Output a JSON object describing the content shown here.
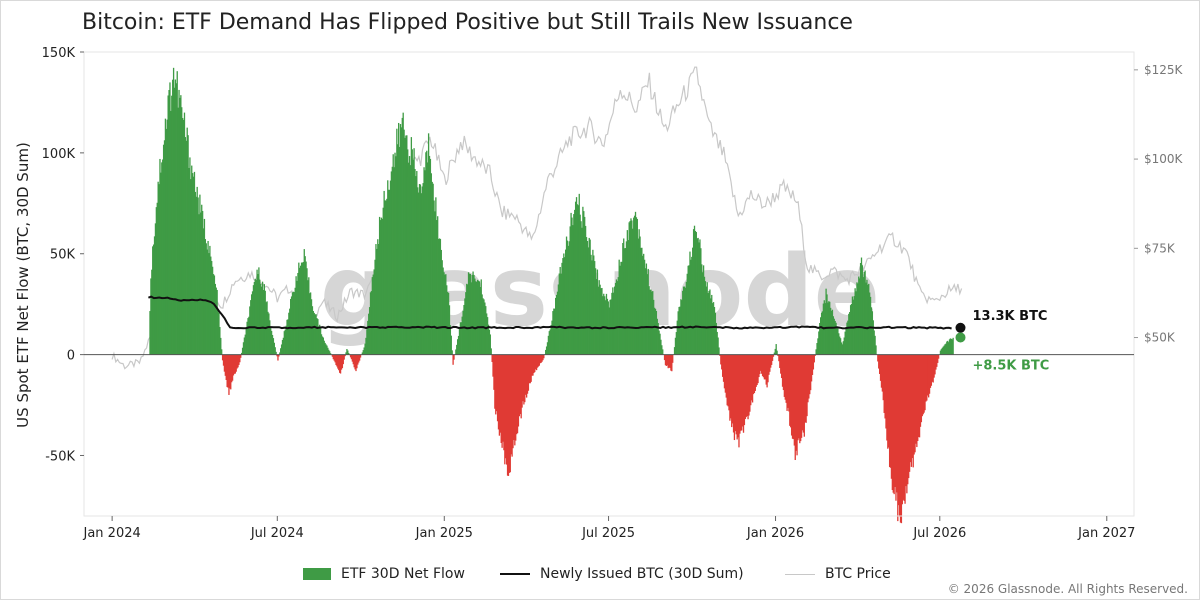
{
  "title": "Bitcoin: ETF Demand Has Flipped Positive but Still Trails New Issuance",
  "watermark": "glassnode",
  "copyright": "© 2026 Glassnode. All Rights Reserved.",
  "colors": {
    "inflow": "#3f9b45",
    "outflow": "#e03a34",
    "issuance": "#111111",
    "price": "#c8c8c8",
    "latest_flow_label": "#3f9b45"
  },
  "chart_data": {
    "type": "bar",
    "title": "Bitcoin: ETF Demand Has Flipped Positive but Still Trails New Issuance",
    "ylabel": "US Spot ETF Net Flow (BTC, 30D Sum)",
    "ylim": [
      -80000,
      150000
    ],
    "yticks": [
      -50000,
      0,
      50000,
      100000,
      150000
    ],
    "ytick_labels": [
      "-50K",
      "0",
      "50K",
      "100K",
      "150K"
    ],
    "y2lim": [
      0,
      130000
    ],
    "y2ticks": [
      50000,
      75000,
      100000,
      125000
    ],
    "y2tick_labels": [
      "$50K",
      "$75K",
      "$100K",
      "$125K"
    ],
    "xlim": [
      "2023-12-01",
      "2027-01-31"
    ],
    "xticks": [
      "2024-01-01",
      "2024-07-01",
      "2025-01-01",
      "2025-07-01",
      "2026-01-01",
      "2026-07-01",
      "2027-01-01"
    ],
    "xtick_labels": [
      "Jan 2024",
      "Jul 2024",
      "Jan 2025",
      "Jul 2025",
      "Jan 2026",
      "Jul 2026",
      "Jan 2027"
    ],
    "grid": false,
    "legend_position": "bottom-center",
    "legend": [
      "ETF 30D Net Flow",
      "Newly Issued BTC (30D Sum)",
      "BTC Price"
    ],
    "annotations": [
      {
        "text": "13.3K BTC",
        "series": "Newly Issued BTC (30D Sum)",
        "date": "2026-07-25",
        "value": 13300
      },
      {
        "text": "+8.5K BTC",
        "series": "ETF 30D Net Flow",
        "date": "2026-07-25",
        "value": 8500
      }
    ],
    "series": [
      {
        "name": "ETF 30D Net Flow",
        "kind": "bar",
        "points": [
          [
            "2024-02-10",
            0
          ],
          [
            "2024-02-12",
            40000
          ],
          [
            "2024-02-20",
            85000
          ],
          [
            "2024-03-01",
            120000
          ],
          [
            "2024-03-08",
            140000
          ],
          [
            "2024-03-15",
            125000
          ],
          [
            "2024-03-25",
            100000
          ],
          [
            "2024-04-05",
            75000
          ],
          [
            "2024-04-15",
            55000
          ],
          [
            "2024-04-25",
            30000
          ],
          [
            "2024-05-01",
            -3000
          ],
          [
            "2024-05-08",
            -20000
          ],
          [
            "2024-05-12",
            -12000
          ],
          [
            "2024-05-20",
            -4000
          ],
          [
            "2024-06-01",
            25000
          ],
          [
            "2024-06-08",
            42000
          ],
          [
            "2024-06-15",
            35000
          ],
          [
            "2024-06-25",
            10000
          ],
          [
            "2024-07-01",
            -3000
          ],
          [
            "2024-07-10",
            15000
          ],
          [
            "2024-07-22",
            40000
          ],
          [
            "2024-07-30",
            48000
          ],
          [
            "2024-08-08",
            25000
          ],
          [
            "2024-08-20",
            8000
          ],
          [
            "2024-09-01",
            -3000
          ],
          [
            "2024-09-08",
            -10000
          ],
          [
            "2024-09-15",
            3000
          ],
          [
            "2024-09-25",
            -8000
          ],
          [
            "2024-10-05",
            5000
          ],
          [
            "2024-10-15",
            45000
          ],
          [
            "2024-10-25",
            75000
          ],
          [
            "2024-11-05",
            95000
          ],
          [
            "2024-11-15",
            115000
          ],
          [
            "2024-11-25",
            100000
          ],
          [
            "2024-12-05",
            80000
          ],
          [
            "2024-12-15",
            105000
          ],
          [
            "2024-12-25",
            60000
          ],
          [
            "2025-01-05",
            30000
          ],
          [
            "2025-01-10",
            -5000
          ],
          [
            "2025-01-20",
            20000
          ],
          [
            "2025-01-28",
            40000
          ],
          [
            "2025-02-10",
            35000
          ],
          [
            "2025-02-20",
            10000
          ],
          [
            "2025-02-25",
            -25000
          ],
          [
            "2025-03-05",
            -45000
          ],
          [
            "2025-03-12",
            -58000
          ],
          [
            "2025-03-18",
            -45000
          ],
          [
            "2025-03-28",
            -25000
          ],
          [
            "2025-04-08",
            -10000
          ],
          [
            "2025-04-20",
            -2000
          ],
          [
            "2025-04-28",
            15000
          ],
          [
            "2025-05-08",
            40000
          ],
          [
            "2025-05-20",
            65000
          ],
          [
            "2025-05-28",
            75000
          ],
          [
            "2025-06-10",
            55000
          ],
          [
            "2025-06-20",
            35000
          ],
          [
            "2025-07-01",
            25000
          ],
          [
            "2025-07-10",
            40000
          ],
          [
            "2025-07-20",
            60000
          ],
          [
            "2025-07-30",
            70000
          ],
          [
            "2025-08-10",
            45000
          ],
          [
            "2025-08-20",
            25000
          ],
          [
            "2025-09-01",
            -5000
          ],
          [
            "2025-09-08",
            -8000
          ],
          [
            "2025-09-15",
            20000
          ],
          [
            "2025-09-25",
            40000
          ],
          [
            "2025-10-05",
            65000
          ],
          [
            "2025-10-15",
            35000
          ],
          [
            "2025-10-25",
            25000
          ],
          [
            "2025-11-01",
            -5000
          ],
          [
            "2025-11-10",
            -30000
          ],
          [
            "2025-11-20",
            -45000
          ],
          [
            "2025-11-28",
            -35000
          ],
          [
            "2025-12-08",
            -20000
          ],
          [
            "2025-12-15",
            -8000
          ],
          [
            "2025-12-22",
            -15000
          ],
          [
            "2026-01-01",
            5000
          ],
          [
            "2026-01-08",
            -15000
          ],
          [
            "2026-01-15",
            -30000
          ],
          [
            "2026-01-22",
            -48000
          ],
          [
            "2026-02-01",
            -38000
          ],
          [
            "2026-02-10",
            -10000
          ],
          [
            "2026-02-18",
            15000
          ],
          [
            "2026-02-25",
            30000
          ],
          [
            "2026-03-05",
            20000
          ],
          [
            "2026-03-15",
            5000
          ],
          [
            "2026-03-25",
            25000
          ],
          [
            "2026-04-05",
            45000
          ],
          [
            "2026-04-15",
            30000
          ],
          [
            "2026-04-22",
            0
          ],
          [
            "2026-04-28",
            -20000
          ],
          [
            "2026-05-05",
            -50000
          ],
          [
            "2026-05-12",
            -72000
          ],
          [
            "2026-05-18",
            -80000
          ],
          [
            "2026-05-25",
            -65000
          ],
          [
            "2026-06-05",
            -45000
          ],
          [
            "2026-06-15",
            -25000
          ],
          [
            "2026-06-25",
            -10000
          ],
          [
            "2026-07-01",
            2000
          ],
          [
            "2026-07-08",
            6000
          ],
          [
            "2026-07-15",
            8500
          ]
        ]
      },
      {
        "name": "Newly Issued BTC (30D Sum)",
        "kind": "line",
        "points": [
          [
            "2024-02-10",
            28500
          ],
          [
            "2024-03-01",
            28000
          ],
          [
            "2024-03-15",
            27000
          ],
          [
            "2024-04-10",
            27000
          ],
          [
            "2024-04-20",
            26000
          ],
          [
            "2024-05-01",
            20000
          ],
          [
            "2024-05-10",
            13500
          ],
          [
            "2024-06-01",
            13300
          ],
          [
            "2024-08-01",
            13500
          ],
          [
            "2024-10-01",
            13400
          ],
          [
            "2024-12-01",
            13600
          ],
          [
            "2025-02-01",
            13300
          ],
          [
            "2025-05-01",
            13500
          ],
          [
            "2025-07-01",
            13300
          ],
          [
            "2025-10-01",
            13600
          ],
          [
            "2025-12-15",
            13100
          ],
          [
            "2026-02-01",
            13800
          ],
          [
            "2026-03-01",
            13200
          ],
          [
            "2026-05-01",
            13500
          ],
          [
            "2026-07-01",
            13200
          ],
          [
            "2026-07-15",
            13300
          ]
        ]
      },
      {
        "name": "BTC Price",
        "kind": "line",
        "axis": "right",
        "points": [
          [
            "2024-01-01",
            45000
          ],
          [
            "2024-01-15",
            42000
          ],
          [
            "2024-02-01",
            43000
          ],
          [
            "2024-02-15",
            52000
          ],
          [
            "2024-03-01",
            62000
          ],
          [
            "2024-03-15",
            70000
          ],
          [
            "2024-04-01",
            68000
          ],
          [
            "2024-04-15",
            64000
          ],
          [
            "2024-05-01",
            59000
          ],
          [
            "2024-05-15",
            66000
          ],
          [
            "2024-06-01",
            68000
          ],
          [
            "2024-06-15",
            66000
          ],
          [
            "2024-07-01",
            61000
          ],
          [
            "2024-07-15",
            64000
          ],
          [
            "2024-08-05",
            54000
          ],
          [
            "2024-08-20",
            60000
          ],
          [
            "2024-09-05",
            56000
          ],
          [
            "2024-09-20",
            63000
          ],
          [
            "2024-10-05",
            62000
          ],
          [
            "2024-10-20",
            68000
          ],
          [
            "2024-11-05",
            70000
          ],
          [
            "2024-11-12",
            88000
          ],
          [
            "2024-11-22",
            98000
          ],
          [
            "2024-12-05",
            100000
          ],
          [
            "2024-12-17",
            106000
          ],
          [
            "2025-01-01",
            94000
          ],
          [
            "2025-01-20",
            105000
          ],
          [
            "2025-02-01",
            101000
          ],
          [
            "2025-02-20",
            96000
          ],
          [
            "2025-03-05",
            85000
          ],
          [
            "2025-03-20",
            84000
          ],
          [
            "2025-04-08",
            77000
          ],
          [
            "2025-04-25",
            94000
          ],
          [
            "2025-05-20",
            106000
          ],
          [
            "2025-06-10",
            109000
          ],
          [
            "2025-06-25",
            104000
          ],
          [
            "2025-07-14",
            120000
          ],
          [
            "2025-08-01",
            114000
          ],
          [
            "2025-08-14",
            122000
          ],
          [
            "2025-09-01",
            108000
          ],
          [
            "2025-09-15",
            115000
          ],
          [
            "2025-10-06",
            124000
          ],
          [
            "2025-10-20",
            109000
          ],
          [
            "2025-11-05",
            101000
          ],
          [
            "2025-11-21",
            84000
          ],
          [
            "2025-12-05",
            90000
          ],
          [
            "2025-12-20",
            87000
          ],
          [
            "2026-01-10",
            92000
          ],
          [
            "2026-01-25",
            88000
          ],
          [
            "2026-02-05",
            70000
          ],
          [
            "2026-02-20",
            67000
          ],
          [
            "2026-03-05",
            69000
          ],
          [
            "2026-03-20",
            66000
          ],
          [
            "2026-04-10",
            70000
          ],
          [
            "2026-04-25",
            75000
          ],
          [
            "2026-05-10",
            78000
          ],
          [
            "2026-05-25",
            74000
          ],
          [
            "2026-06-10",
            62000
          ],
          [
            "2026-06-25",
            60000
          ],
          [
            "2026-07-10",
            63000
          ],
          [
            "2026-07-25",
            64000
          ]
        ]
      }
    ]
  },
  "legend": {
    "flow_label": "ETF 30D Net Flow",
    "issuance_label": "Newly Issued BTC (30D Sum)",
    "price_label": "BTC Price"
  }
}
